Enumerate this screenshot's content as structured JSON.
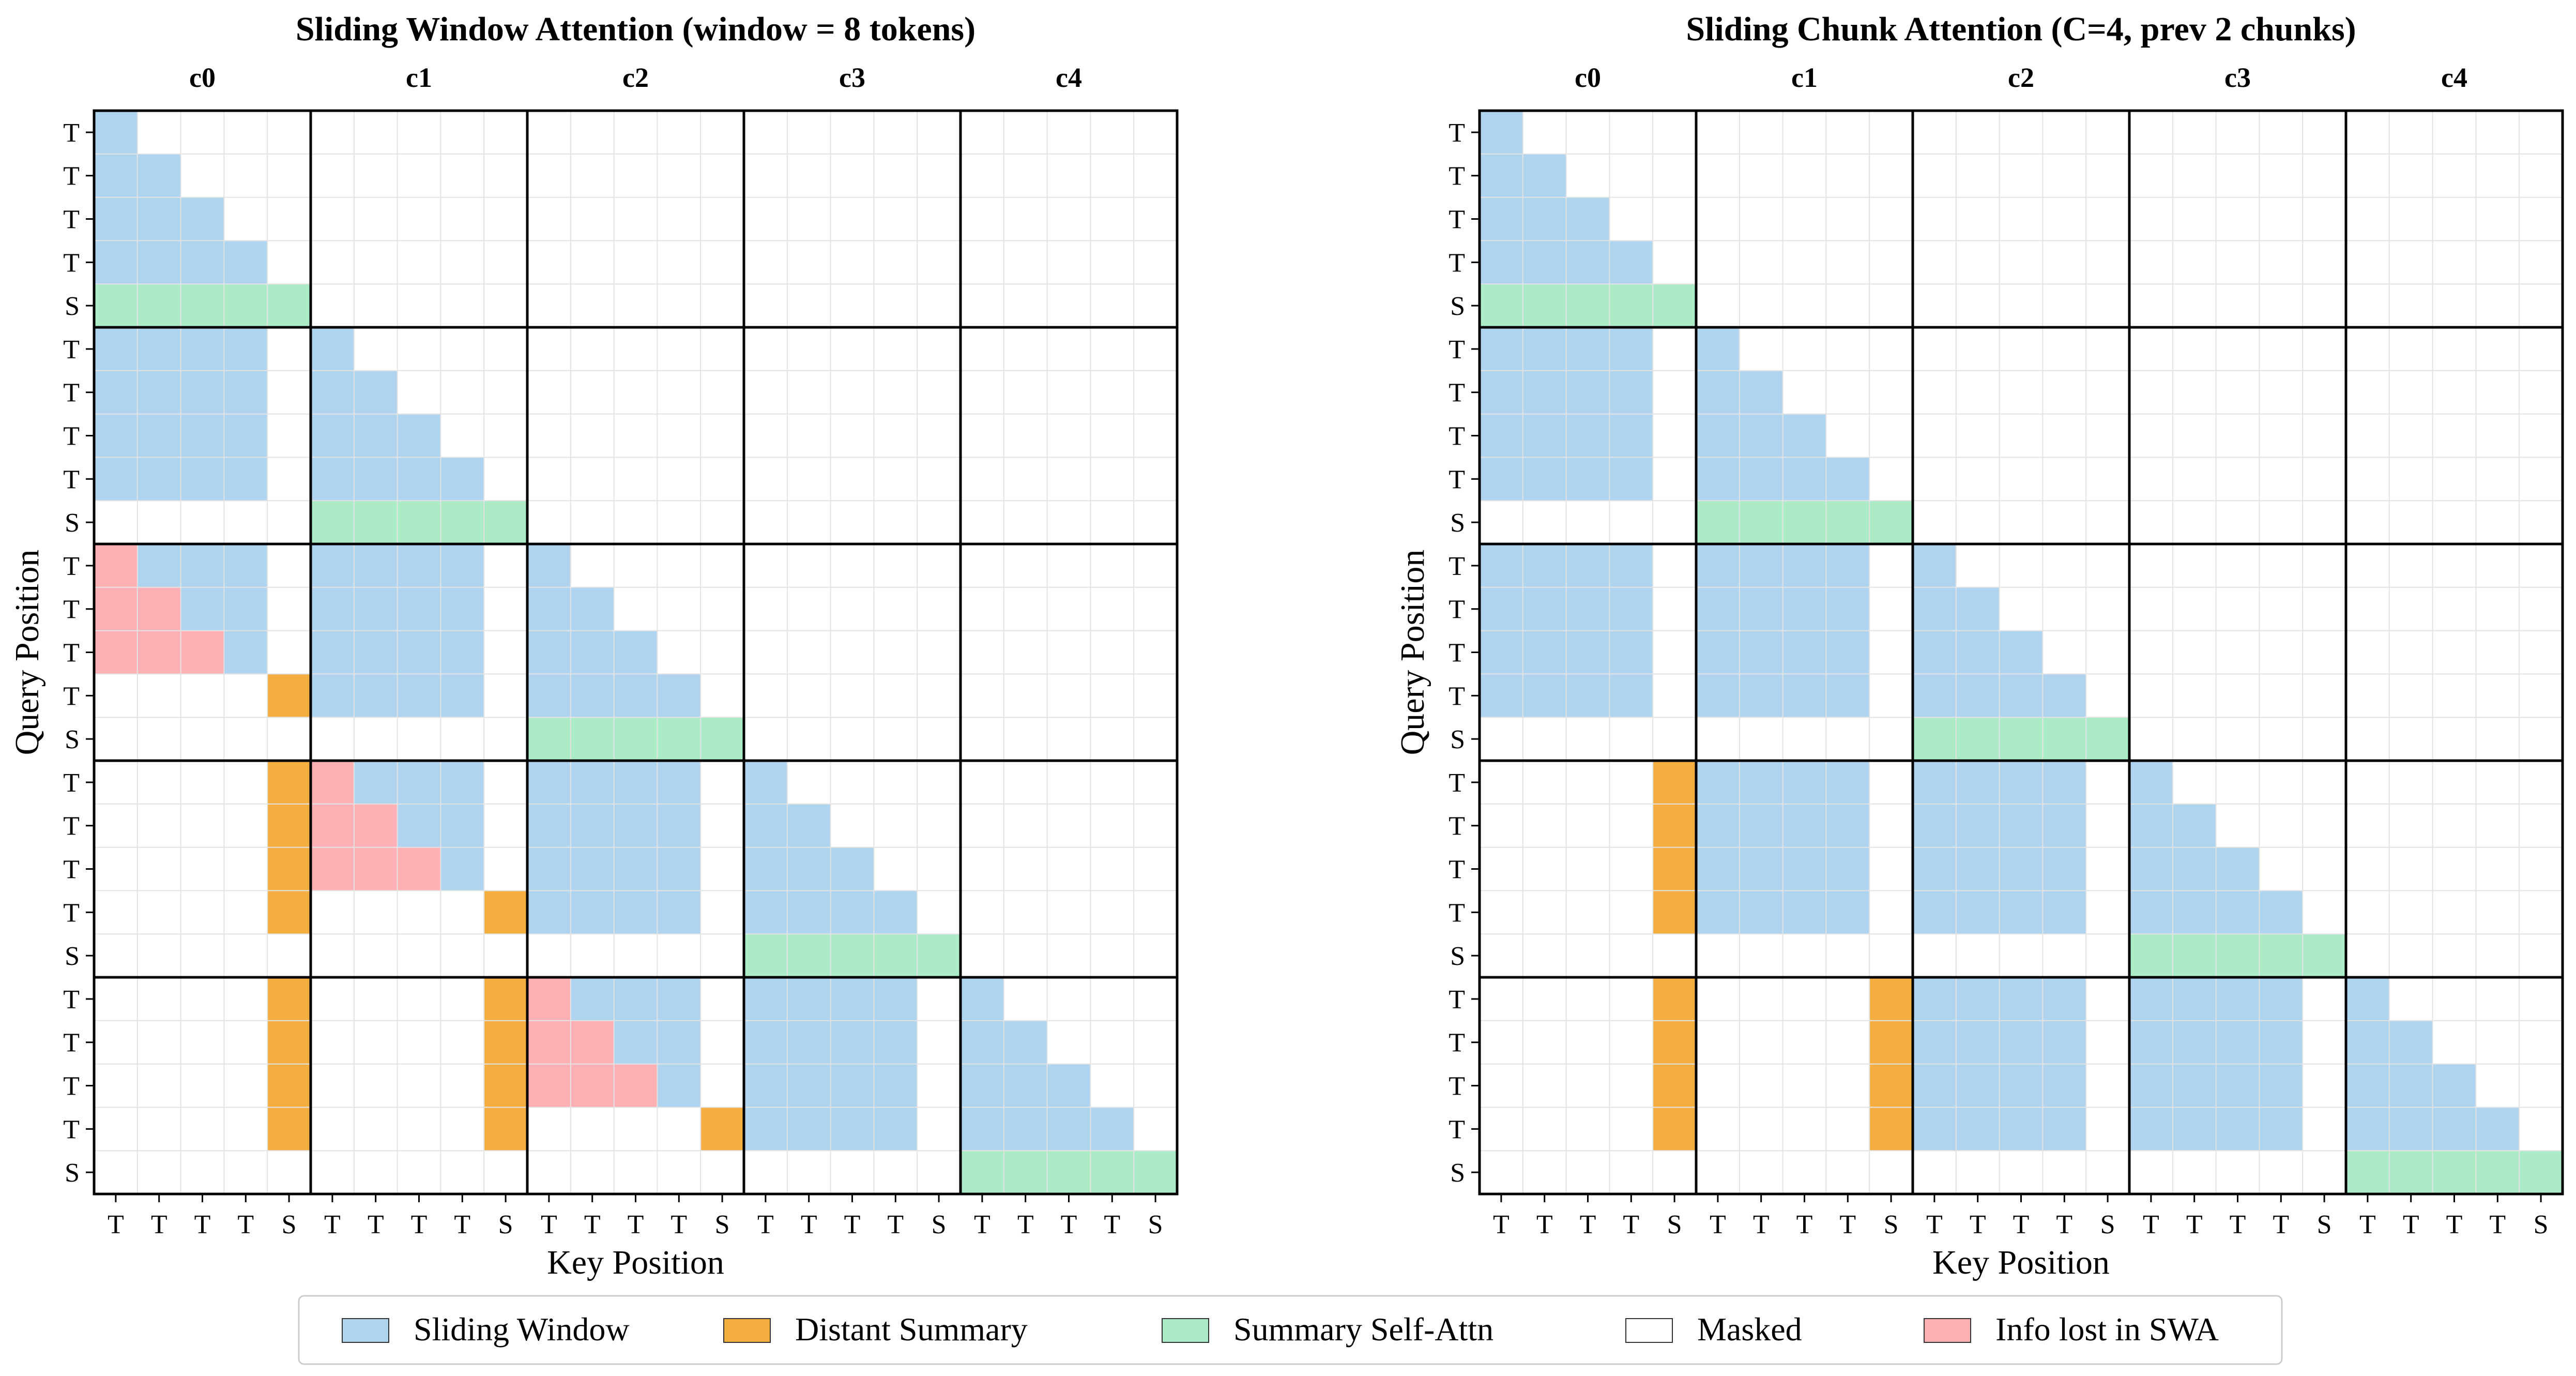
{
  "chart_data": [
    {
      "type": "heatmap",
      "title": "Sliding Window Attention (window = 8 tokens)",
      "xlabel": "Key Position",
      "ylabel": "Query Position",
      "chunks": [
        "c0",
        "c1",
        "c2",
        "c3",
        "c4"
      ],
      "tick_labels": [
        "T",
        "T",
        "T",
        "T",
        "S"
      ],
      "rows": [
        "B..................",
        "BB.................",
        "BBB................",
        "BBBB...............",
        "GGGGG..............",
        "BBBB.B.............",
        "BBBB.BB............",
        "BBBB.BBB...........",
        "BBBB.BBBB..........",
        ".....GGGGG.........",
        "RBBB.BBBB.B........",
        "RRBB.BBBB.BB.......",
        "RRRB.BBBB.BBB......",
        "....OBBBB.BBBB.....",
        "..........GGGGG....",
        "....ORBBB.BBBB.B...",
        "....ORRBB.BBBB.BB..",
        "....ORRRB.BBBB.BBB.",
        "....O....OBBBB.BBBB",
        "...............GGGGG",
        "....O....ORBBB.BBBB.B",
        "....O....ORRBB.BBBB.BB",
        "....O....ORRRB.BBBB.BBB",
        "....O....O....OBBBB.BBBB",
        "....................GGGGG"
      ]
    },
    {
      "type": "heatmap",
      "title": "Sliding Chunk Attention (C=4, prev 2 chunks)",
      "xlabel": "Key Position",
      "ylabel": "Query Position",
      "chunks": [
        "c0",
        "c1",
        "c2",
        "c3",
        "c4"
      ],
      "tick_labels": [
        "T",
        "T",
        "T",
        "T",
        "S"
      ],
      "rows": [
        "B",
        "BB",
        "BBB",
        "BBBB",
        "GGGGG",
        "BBBB.B",
        "BBBB.BB",
        "BBBB.BBB",
        "BBBB.BBBB",
        ".....GGGGG",
        "BBBB.BBBB.B",
        "BBBB.BBBB.BB",
        "BBBB.BBBB.BBB",
        "BBBB.BBBB.BBBB",
        "..........GGGGG",
        "....OBBBB.BBBB.B",
        "....OBBBB.BBBB.BB",
        "....OBBBB.BBBB.BBB",
        "....OBBBB.BBBB.BBBB",
        "...............GGGGG",
        "....O....OBBBB.BBBB.B",
        "....O....OBBBB.BBBB.BB",
        "....O....OBBBB.BBBB.BBB",
        "....O....OBBBB.BBBB.BBBB",
        "....................GGGGG"
      ]
    }
  ],
  "legend": {
    "placement": "bottom-center",
    "items": [
      {
        "key": "B",
        "label": "Sliding Window",
        "color": "#afd4f0"
      },
      {
        "key": "O",
        "label": "Distant Summary",
        "color": "#f5af41"
      },
      {
        "key": "G",
        "label": "Summary Self-Attn",
        "color": "#abebc6"
      },
      {
        "key": ".",
        "label": "Masked",
        "color": "#ffffff"
      },
      {
        "key": "R",
        "label": "Info lost in SWA",
        "color": "#ffb0b4"
      }
    ]
  },
  "colors": {
    "grid": "#e3e3e3",
    "chunk_border": "#000000"
  }
}
